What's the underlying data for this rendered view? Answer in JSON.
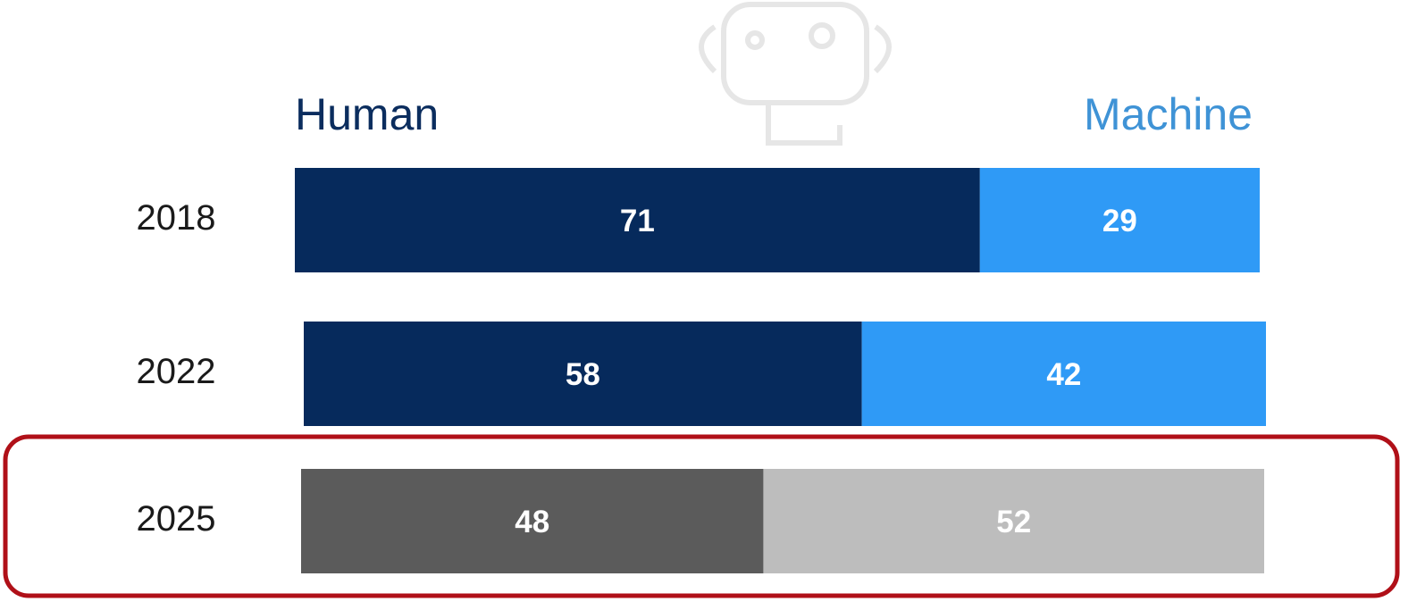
{
  "chart_data": {
    "type": "stacked-bar-horizontal",
    "categories": [
      "2018",
      "2022",
      "2025"
    ],
    "series": [
      {
        "name": "Human",
        "color": "#0b2d5e",
        "point_colors": [
          "#062a5c",
          "#062a5c",
          "#5b5b5b"
        ],
        "values": [
          71,
          58,
          48
        ]
      },
      {
        "name": "Machine",
        "color": "#3f93d6",
        "point_colors": [
          "#2f9af6",
          "#2f9af6",
          "#bdbdbd"
        ],
        "values": [
          29,
          42,
          52
        ]
      }
    ],
    "highlight_category": "2025",
    "highlight_color": "#b01018"
  }
}
